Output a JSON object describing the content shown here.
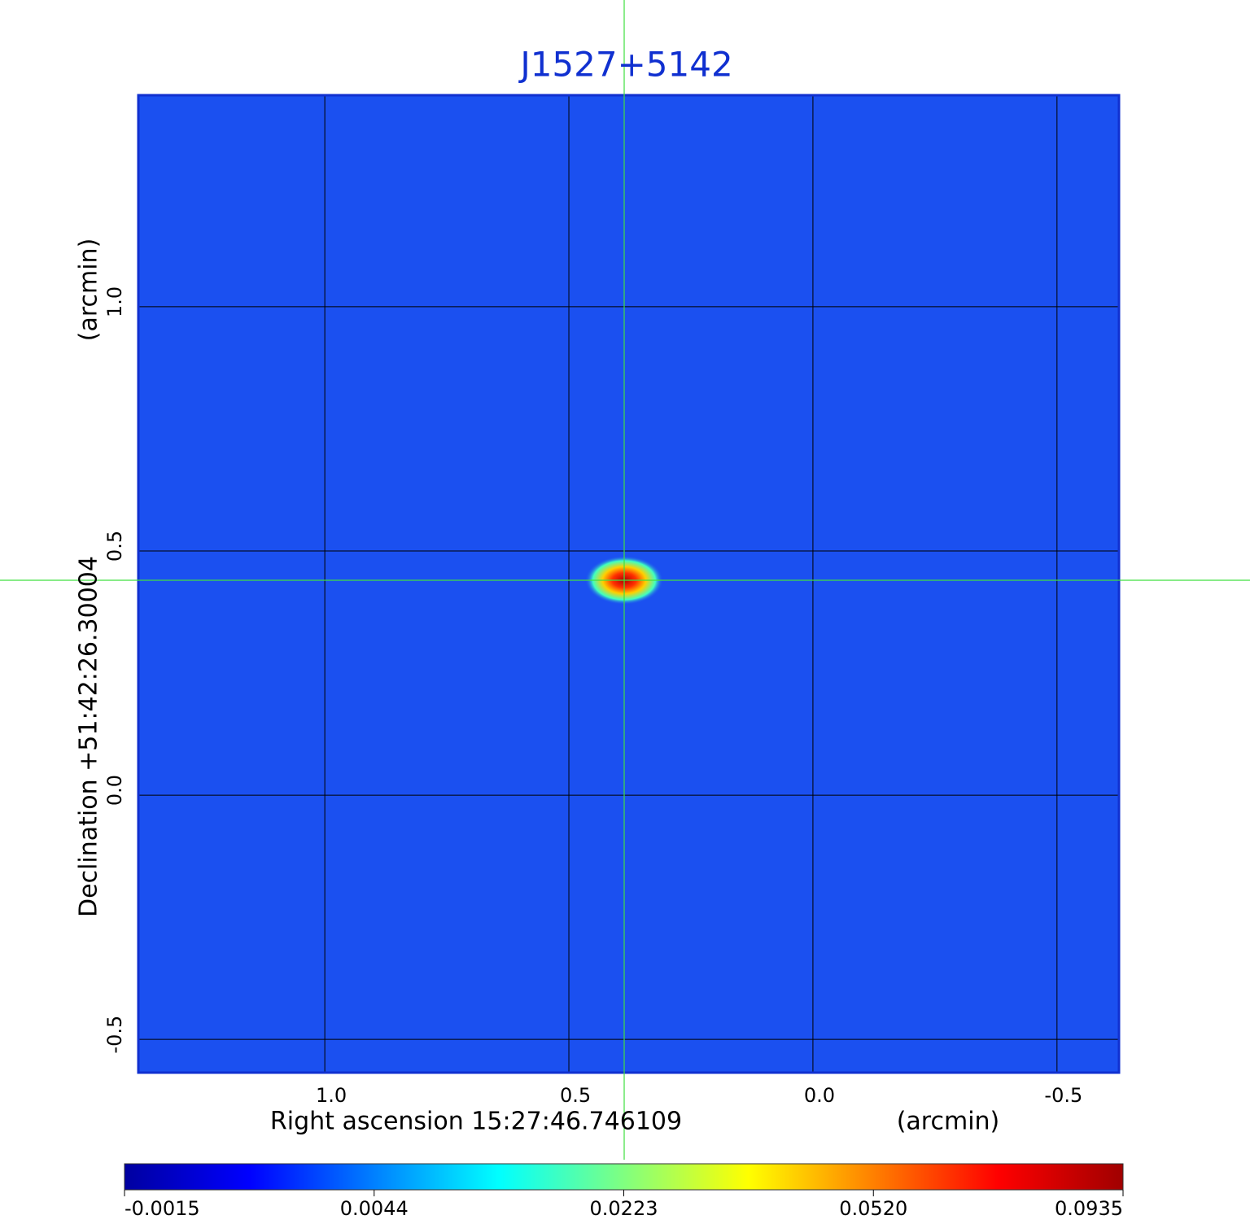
{
  "chart_data": {
    "type": "image",
    "title": "J1527+5142",
    "xlabel": "Right ascension  15:27:46.746109",
    "xunit": "(arcmin)",
    "ylabel": "Declination  +51:42:26.30004",
    "yunit": "(arcmin)",
    "xlim": [
      1.382,
      -0.627
    ],
    "ylim": [
      -0.568,
      1.433
    ],
    "xticks": [
      {
        "value": 1.0,
        "label": "1.0"
      },
      0.5,
      {
        "value": 0.0,
        "label": "0.0"
      },
      -0.5
    ],
    "yticks": [
      -0.5,
      {
        "value": 0.0,
        "label": "0.0"
      },
      0.5,
      {
        "value": 1.0,
        "label": "1.0"
      }
    ],
    "grid": true,
    "background": "#1b50f0",
    "colorbar": {
      "colormap": [
        "#0000a0",
        "#0000ff",
        "#0080ff",
        "#00ffff",
        "#80ff80",
        "#ffff00",
        "#ff8000",
        "#ff0000",
        "#a00000"
      ],
      "ticks": [
        -0.0015,
        0.0044,
        0.0223,
        {
          "value": 0.052,
          "label": "0.0520"
        },
        0.0935
      ]
    }
  }
}
